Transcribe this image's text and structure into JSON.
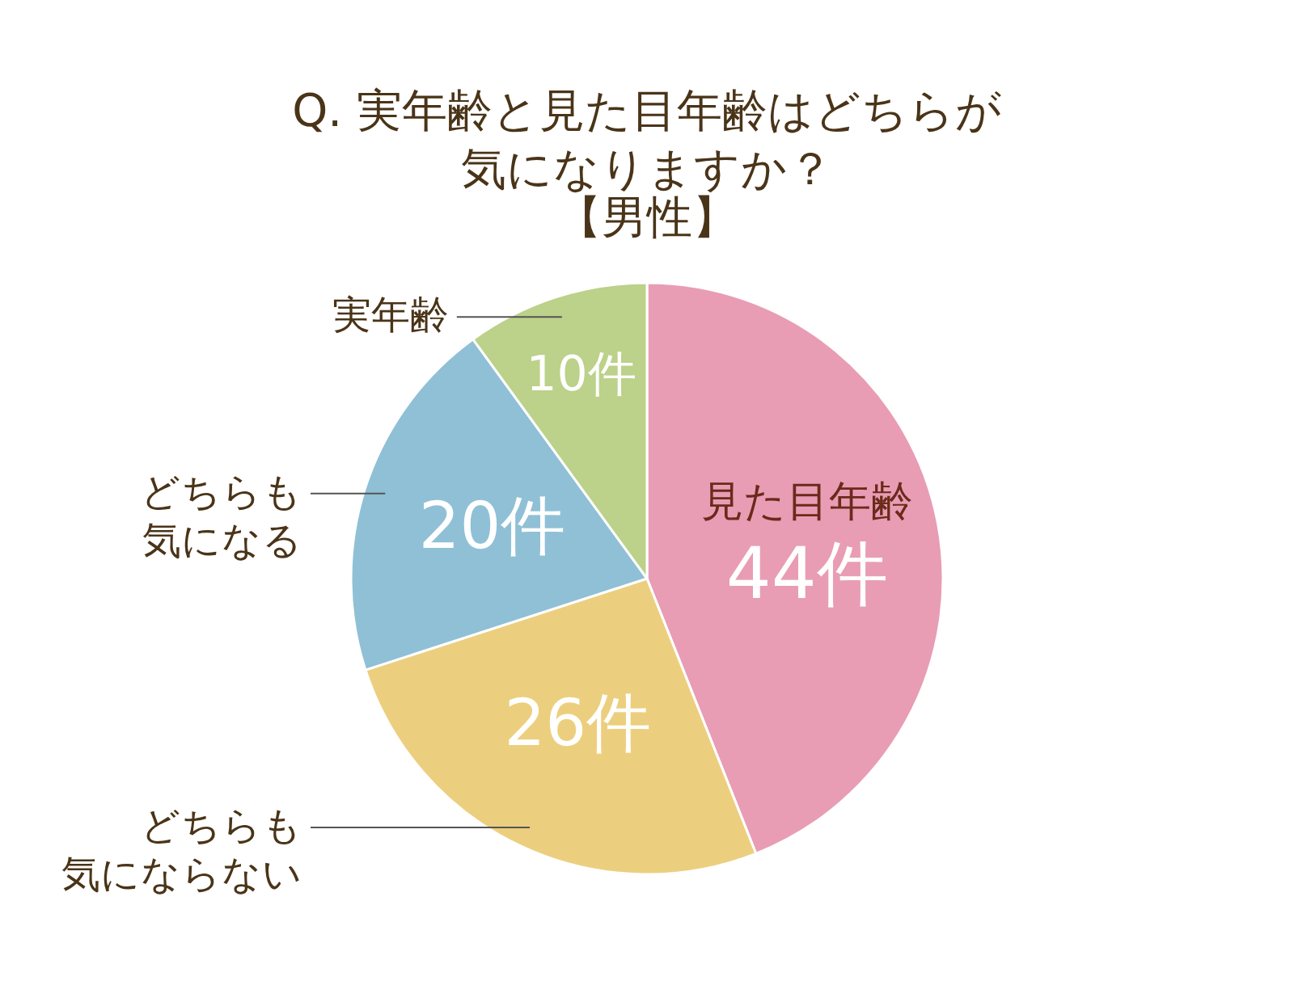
{
  "chart_data": {
    "type": "pie",
    "title": "Q. 実年齢と見た目年齢はどちらが気になりますか？",
    "subtitle": "【男性】",
    "categories": [
      "見た目年齢",
      "どちらも気にならない",
      "どちらも気になる",
      "実年齢"
    ],
    "values": [
      44,
      26,
      20,
      10
    ],
    "value_labels": [
      "44件",
      "26件",
      "20件",
      "10件"
    ],
    "colors": [
      "#e89db5",
      "#eccf7e",
      "#8fc0d6",
      "#bcd189"
    ],
    "legend": false
  }
}
